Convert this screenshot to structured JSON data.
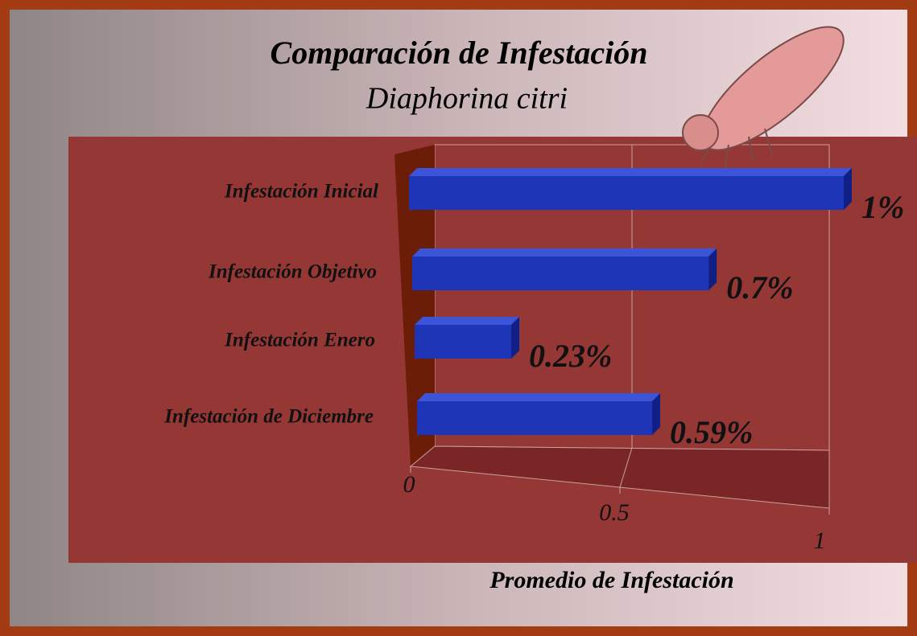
{
  "chart_data": {
    "type": "bar",
    "orientation": "horizontal",
    "title": "Comparación de Infestación",
    "subtitle": "Diaphorina citri",
    "x_label": "Promedio de Infestación",
    "categories": [
      "Infestación Inicial",
      "Infestación Objetivo",
      "Infestación Enero",
      "Infestación de Diciembre"
    ],
    "values": [
      1,
      0.7,
      0.23,
      0.59
    ],
    "value_labels": [
      "1%",
      "0.7%",
      "0.23%",
      "0.59%"
    ],
    "color": "#1f35b8",
    "xlim": [
      0,
      1
    ],
    "xticks": [
      0,
      0.5,
      1
    ],
    "grid": true
  }
}
